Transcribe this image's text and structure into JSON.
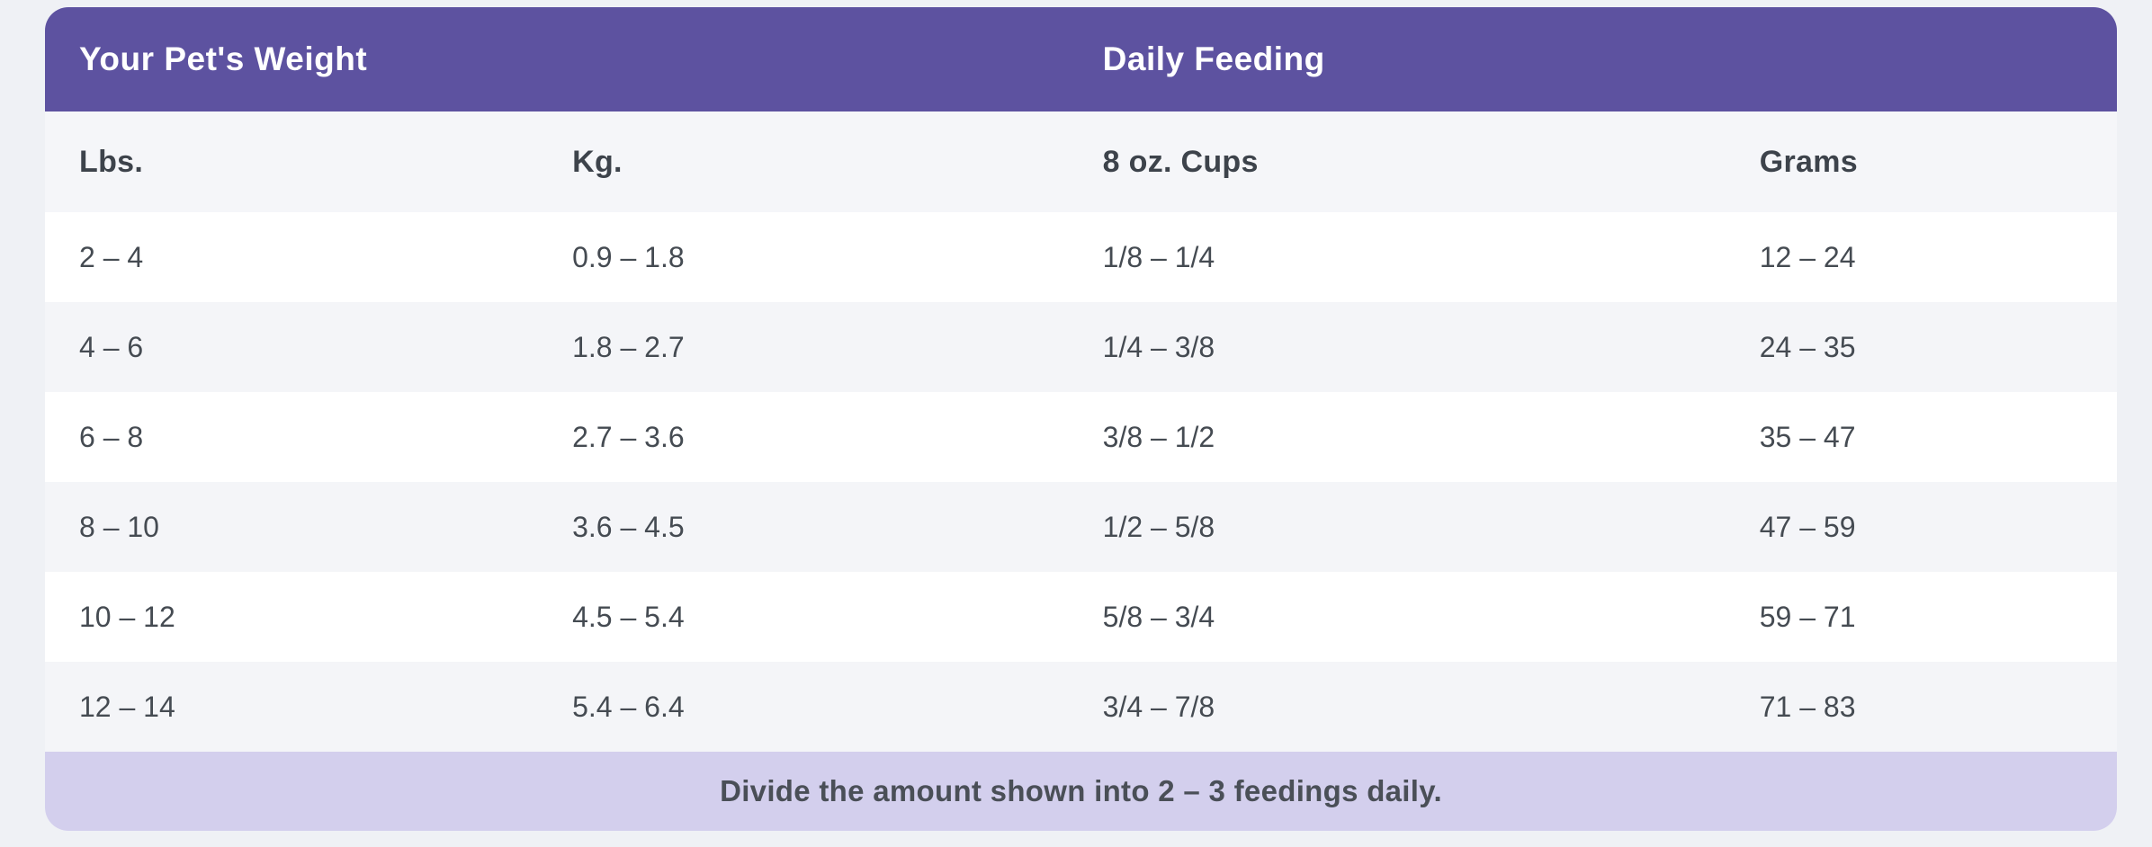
{
  "header": {
    "weight_group_label": "Your Pet's Weight",
    "feeding_group_label": "Daily Feeding"
  },
  "columns": [
    "Lbs.",
    "Kg.",
    "8 oz. Cups",
    "Grams"
  ],
  "rows": [
    {
      "lbs": "2 – 4",
      "kg": "0.9 – 1.8",
      "cups": "1/8 – 1/4",
      "grams": "12 – 24"
    },
    {
      "lbs": "4 – 6",
      "kg": "1.8 – 2.7",
      "cups": "1/4 – 3/8",
      "grams": "24 – 35"
    },
    {
      "lbs": "6 – 8",
      "kg": "2.7 – 3.6",
      "cups": "3/8 – 1/2",
      "grams": "35 – 47"
    },
    {
      "lbs": "8 – 10",
      "kg": "3.6 – 4.5",
      "cups": "1/2 – 5/8",
      "grams": "47 – 59"
    },
    {
      "lbs": "10 – 12",
      "kg": "4.5 – 5.4",
      "cups": "5/8 – 3/4",
      "grams": "59 – 71"
    },
    {
      "lbs": "12 – 14",
      "kg": "5.4 – 6.4",
      "cups": "3/4 – 7/8",
      "grams": "71 – 83"
    }
  ],
  "footnote": "Divide the amount shown into 2 – 3 feedings daily.",
  "colors": {
    "header_background": "#5d52a0",
    "header_text": "#ffffff",
    "footnote_background": "#d3cfed",
    "alt_row_background": "#f4f5f8",
    "page_background": "#eff1f5",
    "body_text": "#454b52"
  },
  "chart_data": {
    "type": "table",
    "title": "Pet feeding guide",
    "column_groups": [
      "Your Pet's Weight",
      "Daily Feeding"
    ],
    "columns": [
      "Lbs.",
      "Kg.",
      "8 oz. Cups",
      "Grams"
    ],
    "rows": [
      [
        "2 – 4",
        "0.9 – 1.8",
        "1/8 – 1/4",
        "12 – 24"
      ],
      [
        "4 – 6",
        "1.8 – 2.7",
        "1/4 – 3/8",
        "24 – 35"
      ],
      [
        "6 – 8",
        "2.7 – 3.6",
        "3/8 – 1/2",
        "35 – 47"
      ],
      [
        "8 – 10",
        "3.6 – 4.5",
        "1/2 – 5/8",
        "47 – 59"
      ],
      [
        "10 – 12",
        "4.5 – 5.4",
        "5/8 – 3/4",
        "59 – 71"
      ],
      [
        "12 – 14",
        "5.4 – 6.4",
        "3/4 – 7/8",
        "71 – 83"
      ]
    ],
    "footnote": "Divide the amount shown into 2 – 3 feedings daily."
  }
}
